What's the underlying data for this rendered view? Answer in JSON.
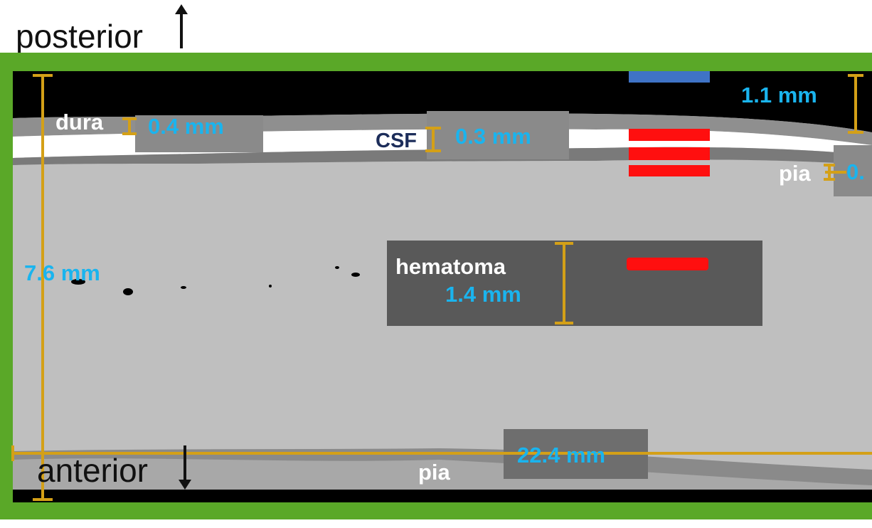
{
  "orientation": {
    "top_label": "posterior",
    "bottom_label": "anterior"
  },
  "layers": {
    "dura": {
      "label": "dura",
      "thickness": "0.4 mm"
    },
    "csf": {
      "label": "CSF",
      "thickness": "0.3 mm"
    },
    "pia_top": {
      "label": "pia",
      "thickness": "0."
    },
    "pia_bottom": {
      "label": "pia"
    }
  },
  "measurements": {
    "top_gap": "1.1 mm",
    "total_depth": "7.6 mm",
    "width": "22.4 mm"
  },
  "hematoma": {
    "label": "hematoma",
    "thickness": "1.4 mm"
  },
  "colors": {
    "frame": "#5aa828",
    "tissue": "#bfbfbf",
    "dura_layer": "#8f8f8f",
    "csf_layer": "#ffffff",
    "hematoma_box": "#595959",
    "measure_line": "#d4a017",
    "label_blue": "#1ab4ee",
    "marker_red": "#ff0f0f",
    "marker_blue": "#3f73c6"
  }
}
